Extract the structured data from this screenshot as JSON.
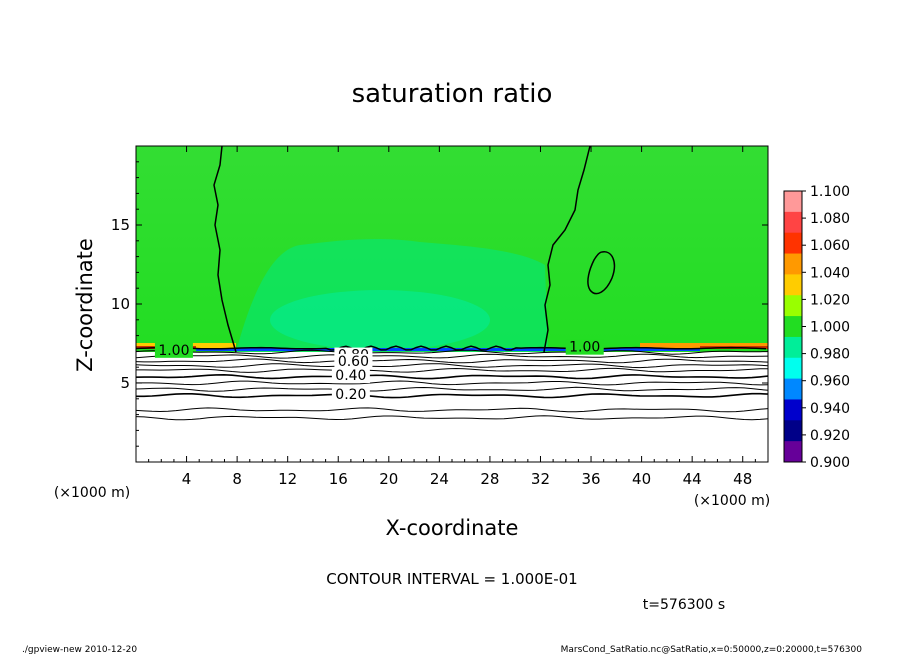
{
  "chart_data": {
    "type": "heatmap",
    "title": "saturation ratio",
    "xlabel": "X-coordinate",
    "ylabel": "Z-coordinate",
    "x_unit_label": "(×1000 m)",
    "y_unit_label": "(×1000 m)",
    "xlim": [
      0,
      50
    ],
    "ylim": [
      0,
      20
    ],
    "x_ticks": [
      4,
      8,
      12,
      16,
      20,
      24,
      28,
      32,
      36,
      40,
      44,
      48
    ],
    "y_ticks": [
      5,
      10,
      15
    ],
    "colorbar": {
      "labels": [
        "1.100",
        "1.080",
        "1.060",
        "1.040",
        "1.020",
        "1.000",
        "0.980",
        "0.960",
        "0.940",
        "0.920",
        "0.900"
      ],
      "values": [
        1.1,
        1.08,
        1.06,
        1.04,
        1.02,
        1.0,
        0.98,
        0.96,
        0.94,
        0.92,
        0.9
      ],
      "colors": [
        "#ff9999",
        "#ff4444",
        "#ff3300",
        "#ff9900",
        "#ffcc00",
        "#99ff00",
        "#22dd22",
        "#00ee99",
        "#00ffee",
        "#0088ff",
        "#0000cc",
        "#000088",
        "#660099"
      ]
    },
    "contour_labels": [
      "1.00",
      "1.00",
      "0.80",
      "0.60",
      "0.40",
      "0.20"
    ],
    "contour_label_positions": [
      {
        "label": "1.00",
        "x": 35.5,
        "z": 7.3
      },
      {
        "label": "1.00",
        "x": 3.0,
        "z": 7.1
      },
      {
        "label": "0.80",
        "x": 17.2,
        "z": 6.8
      },
      {
        "label": "0.60",
        "x": 17.2,
        "z": 6.4
      },
      {
        "label": "0.40",
        "x": 17.0,
        "z": 5.5
      },
      {
        "label": "0.20",
        "x": 17.0,
        "z": 4.3
      }
    ],
    "subsaturated_bands_z": [
      2.8,
      3.3,
      4.2,
      4.6,
      5.0,
      5.4,
      5.8,
      6.1,
      6.4,
      6.7,
      6.95
    ],
    "saturation_boundary_z": 7.2,
    "contour_interval": "CONTOUR INTERVAL = 1.000E-01",
    "time_label": "t=576300 s"
  },
  "footer": {
    "left": "./gpview-new   2010-12-20",
    "right": "MarsCond_SatRatio.nc@SatRatio,x=0:50000,z=0:20000,t=576300"
  }
}
